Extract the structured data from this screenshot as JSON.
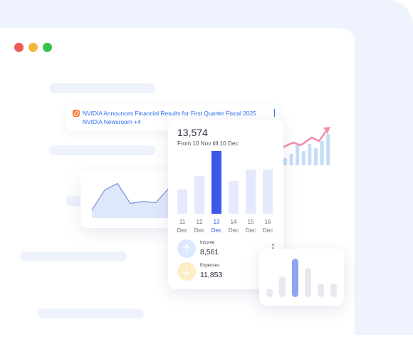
{
  "window": {
    "dot_colors": [
      "#f05a54",
      "#f4b63f",
      "#3ac34b"
    ]
  },
  "news_card": {
    "headline": "NVIDIA Announces Financial Results for First Quarter Fiscal 2025",
    "source": "NVIDIA Newsroom  +4",
    "icon": "link-icon"
  },
  "summary_card": {
    "total": "13,574",
    "range": "From 10 Nov till 10 Dec",
    "selected_index": 2,
    "days": [
      {
        "day": "11",
        "month": "Dec"
      },
      {
        "day": "12",
        "month": "Dec"
      },
      {
        "day": "13",
        "month": "Dec"
      },
      {
        "day": "14",
        "month": "Dec"
      },
      {
        "day": "15",
        "month": "Dec"
      },
      {
        "day": "16",
        "month": "Dec"
      }
    ],
    "income": {
      "label": "Income",
      "value": "8,561",
      "icon": "arrow-up-icon",
      "color": "#dce8ff"
    },
    "expenses": {
      "label": "Expenses",
      "value": "11,853",
      "icon": "arrow-down-icon",
      "color": "#fdefc3"
    }
  },
  "chart_data": [
    {
      "type": "bar",
      "categories": [
        "11 Dec",
        "12 Dec",
        "13 Dec",
        "14 Dec",
        "15 Dec",
        "16 Dec"
      ],
      "values": [
        33,
        52,
        86,
        45,
        61,
        61
      ],
      "ylim": [
        0,
        90
      ],
      "colors": {
        "bar": "#e4e9fb",
        "selected": "#3b59e8"
      }
    },
    {
      "type": "line",
      "x": [
        0,
        1,
        2,
        3,
        4,
        5,
        6
      ],
      "y": [
        12,
        42,
        52,
        22,
        25,
        23,
        45
      ],
      "ylim": [
        0,
        60
      ],
      "colors": {
        "line": "#7f9ad8",
        "fill": "#dfe7fa"
      }
    },
    {
      "type": "bar",
      "values": [
        12,
        28,
        52,
        40,
        18,
        18
      ],
      "ylim": [
        0,
        60
      ],
      "highlight_index": 2,
      "colors": {
        "bar": "#e6e9ee",
        "highlight": "#8ca5f5"
      }
    },
    {
      "type": "bar",
      "values": [
        5,
        8,
        14,
        10,
        15,
        12,
        17,
        22
      ],
      "ylim": [
        0,
        25
      ],
      "colors": {
        "bar": "#c3ddf7",
        "trend": "#f48fb1"
      }
    }
  ]
}
